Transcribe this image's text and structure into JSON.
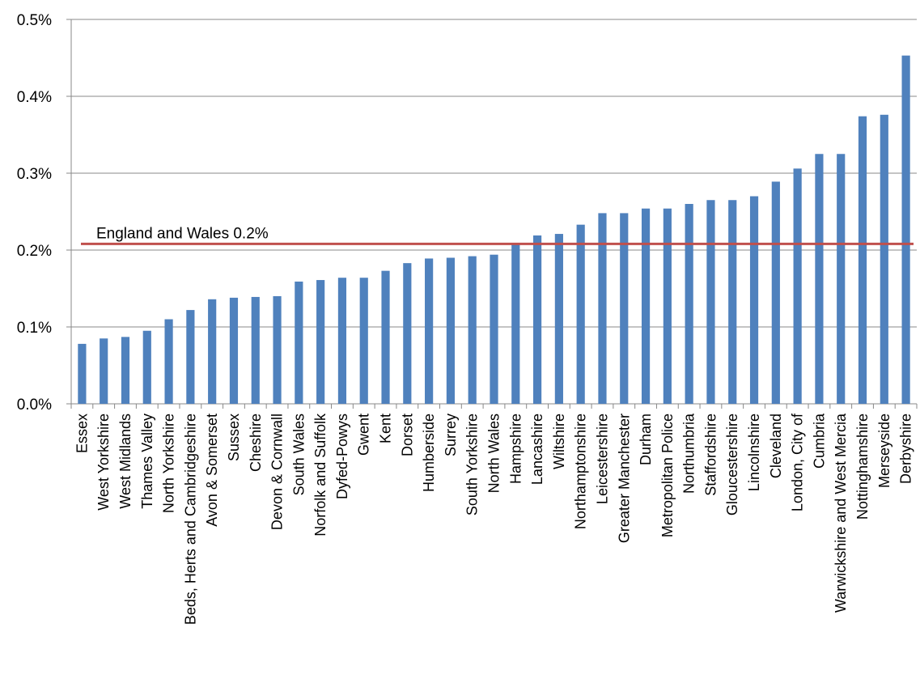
{
  "chart_data": {
    "type": "bar",
    "title": "",
    "xlabel": "",
    "ylabel": "",
    "ylim": [
      0,
      0.5
    ],
    "y_ticks": [
      "0.0%",
      "0.1%",
      "0.2%",
      "0.3%",
      "0.4%",
      "0.5%"
    ],
    "y_tick_values": [
      0,
      0.1,
      0.2,
      0.3,
      0.4,
      0.5
    ],
    "grid": true,
    "legend": "none",
    "categories": [
      "Essex",
      "West Yorkshire",
      "West Midlands",
      "Thames Valley",
      "North Yorkshire",
      "Beds, Herts and Cambridgeshire",
      "Avon & Somerset",
      "Sussex",
      "Cheshire",
      "Devon & Cornwall",
      "South Wales",
      "Norfolk and Suffolk",
      "Dyfed-Powys",
      "Gwent",
      "Kent",
      "Dorset",
      "Humberside",
      "Surrey",
      "South Yorkshire",
      "North Wales",
      "Hampshire",
      "Lancashire",
      "Wiltshire",
      "Northamptonshire",
      "Leicestershire",
      "Greater Manchester",
      "Durham",
      "Metropolitan Police",
      "Northumbria",
      "Staffordshire",
      "Gloucestershire",
      "Lincolnshire",
      "Cleveland",
      "London, City of",
      "Cumbria",
      "Warwickshire and West Mercia",
      "Nottinghamshire",
      "Merseyside",
      "Derbyshire"
    ],
    "values": [
      0.078,
      0.085,
      0.087,
      0.095,
      0.11,
      0.122,
      0.136,
      0.138,
      0.139,
      0.14,
      0.159,
      0.161,
      0.164,
      0.164,
      0.173,
      0.183,
      0.189,
      0.19,
      0.192,
      0.194,
      0.207,
      0.219,
      0.221,
      0.233,
      0.248,
      0.248,
      0.254,
      0.254,
      0.26,
      0.265,
      0.265,
      0.27,
      0.289,
      0.306,
      0.325,
      0.325,
      0.374,
      0.376,
      0.453
    ],
    "reference_line": {
      "label": "England and Wales 0.2%",
      "value": 0.208
    },
    "colors": {
      "bar": "#4F81BD",
      "reference": "#C0504D",
      "grid": "#888888",
      "axis": "#888888"
    }
  }
}
